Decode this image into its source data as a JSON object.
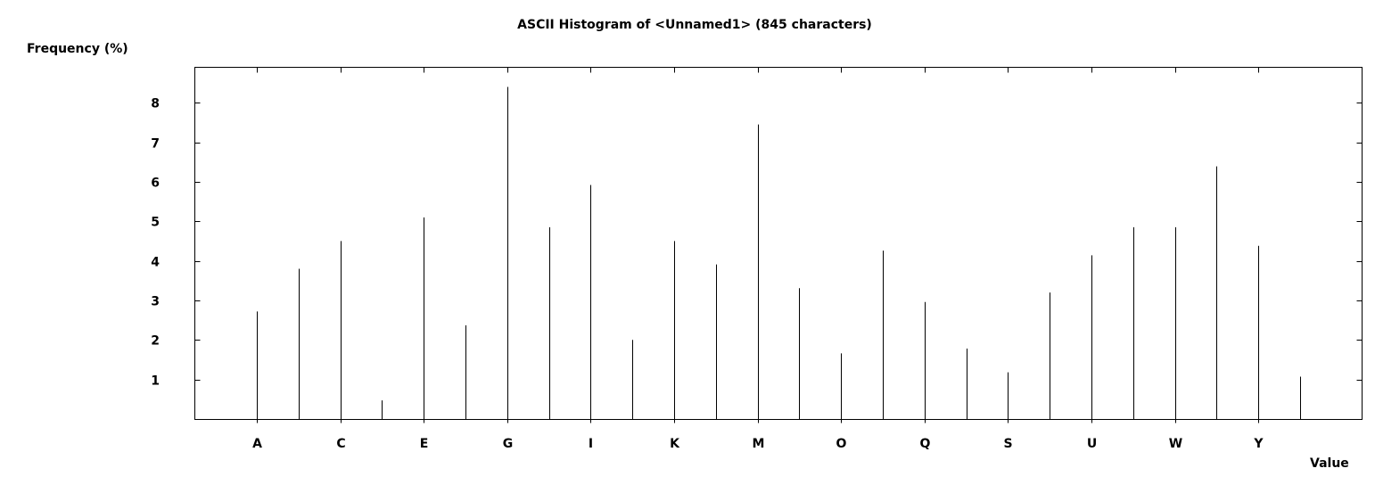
{
  "chart_data": {
    "type": "bar",
    "title": "ASCII Histogram of <Unnamed1> (845 characters)",
    "ylabel": "Frequency (%)",
    "xlabel": "Value",
    "categories": [
      "A",
      "B",
      "C",
      "D",
      "E",
      "F",
      "G",
      "H",
      "I",
      "J",
      "K",
      "L",
      "M",
      "N",
      "O",
      "P",
      "Q",
      "R",
      "S",
      "T",
      "U",
      "V",
      "W",
      "X",
      "Y",
      "Z"
    ],
    "tick_labels": [
      "A",
      "C",
      "E",
      "G",
      "I",
      "K",
      "M",
      "O",
      "Q",
      "S",
      "U",
      "W",
      "Y"
    ],
    "values": [
      2.72,
      3.8,
      4.5,
      0.47,
      5.1,
      2.37,
      8.4,
      4.85,
      5.92,
      2.0,
      4.5,
      3.91,
      7.45,
      3.31,
      1.66,
      4.26,
      2.96,
      1.78,
      1.18,
      3.2,
      4.14,
      4.85,
      4.85,
      6.39,
      4.38,
      1.07
    ],
    "y_ticks": [
      1,
      2,
      3,
      4,
      5,
      6,
      7,
      8
    ],
    "ylim": [
      0,
      8.9
    ],
    "grid": false
  }
}
